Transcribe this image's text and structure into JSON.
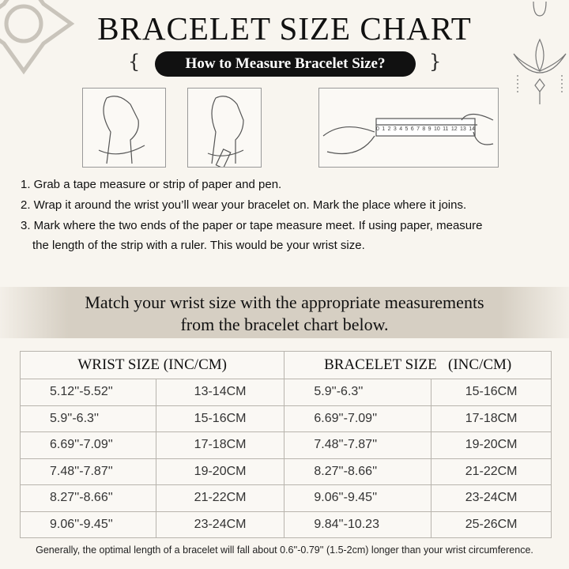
{
  "header": {
    "title": "BRACELET SIZE CHART",
    "subtitle": "How to Measure Bracelet Size?",
    "left_flourish": "{",
    "right_flourish": "}"
  },
  "illustrations": {
    "ruler_numbers": [
      "0",
      "1",
      "2",
      "3",
      "4",
      "5",
      "6",
      "7",
      "8",
      "9",
      "10",
      "11",
      "12",
      "13",
      "14"
    ]
  },
  "steps": [
    "1. Grab a tape measure or strip of paper and pen.",
    "2. Wrap it around the wrist you’ll wear your bracelet on. Mark the place where it joins.",
    "3. Mark where the two ends of the paper or tape measure meet. If using paper, measure",
    "the length of the strip with a ruler. This would be your wrist size."
  ],
  "banner": {
    "line1": "Match your wrist size with the appropriate measurements",
    "line2": "from the bracelet chart below."
  },
  "table": {
    "headers": [
      "WRIST SIZE (INC/CM)",
      "BRACELET SIZE   (INC/CM)"
    ],
    "rows": [
      [
        "5.12''-5.52''",
        "13-14CM",
        "5.9''-6.3''",
        "15-16CM"
      ],
      [
        "5.9''-6.3''",
        "15-16CM",
        "6.69''-7.09''",
        "17-18CM"
      ],
      [
        "6.69''-7.09''",
        "17-18CM",
        "7.48''-7.87''",
        "19-20CM"
      ],
      [
        "7.48''-7.87''",
        "19-20CM",
        "8.27''-8.66''",
        "21-22CM"
      ],
      [
        "8.27''-8.66''",
        "21-22CM",
        "9.06''-9.45''",
        "23-24CM"
      ],
      [
        "9.06''-9.45''",
        "23-24CM",
        "9.84''-10.23",
        "25-26CM"
      ]
    ]
  },
  "footer": "Generally, the optimal length of a bracelet will fall about 0.6''-0.79'' (1.5-2cm) longer than your wrist circumference."
}
